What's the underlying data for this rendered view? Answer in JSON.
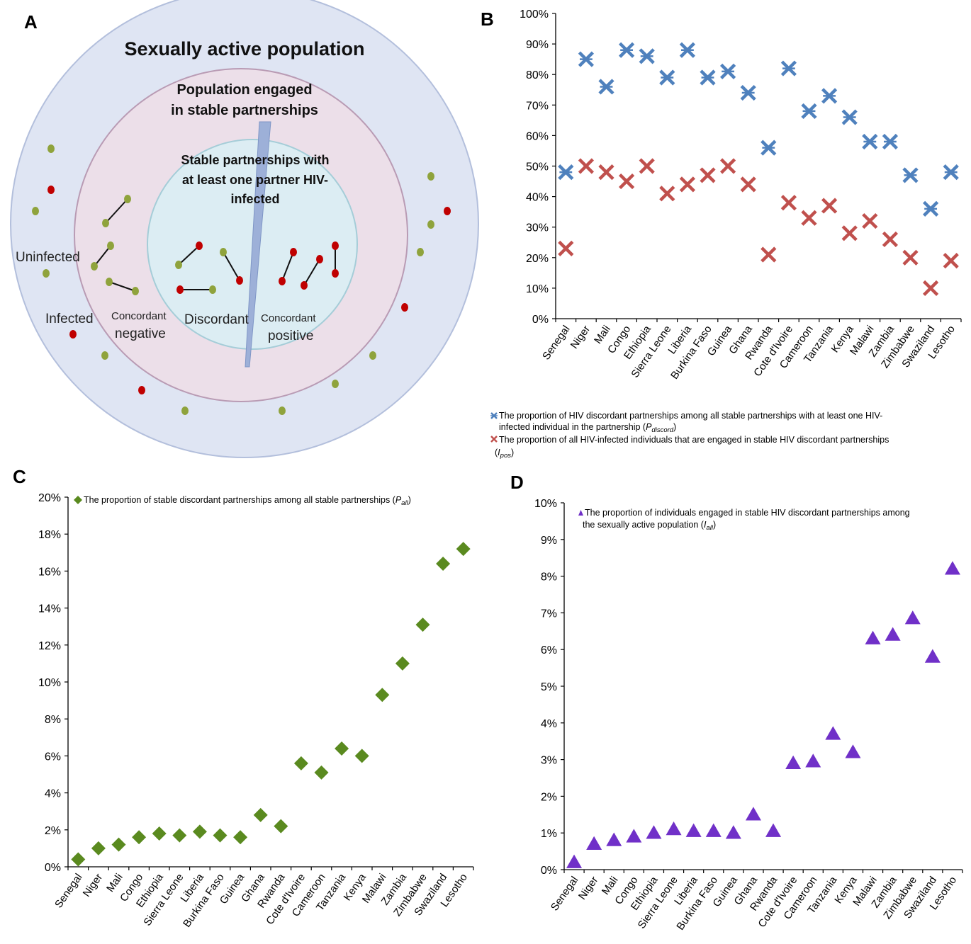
{
  "panels": {
    "A": {
      "letter": "A",
      "outer_label": "Sexually active population",
      "middle_label_1": "Population engaged",
      "middle_label_2": "in stable partnerships",
      "inner_label_1": "Stable partnerships with",
      "inner_label_2": "at least one partner HIV-",
      "inner_label_3": "infected",
      "uninfected": "Uninfected",
      "infected": "Infected",
      "concordant_neg_1": "Concordant",
      "concordant_neg_2": "negative",
      "discordant": "Discordant",
      "concordant_pos_1": "Concordant",
      "concordant_pos_2": "positive",
      "colors": {
        "outer": "#dfe5f3",
        "middle": "#ecdfe9",
        "inner": "#dcedf3",
        "uninfected_dot": "#8fa33c",
        "infected_dot": "#c00000"
      }
    },
    "B": {
      "letter": "B",
      "legend_blue": "The proportion of HIV discordant partnerships among all stable partnerships with at least one HIV-",
      "legend_blue_2": "infected individual in the partnership (",
      "legend_blue_sym": "P",
      "legend_blue_sub": "discord",
      "legend_red": "The proportion of all HIV-infected individuals that are engaged in stable HIV discordant partnerships",
      "legend_red_sym": "I",
      "legend_red_sub": "pos"
    },
    "C": {
      "letter": "C",
      "legend": "The proportion of stable discordant partnerships among all stable partnerships (",
      "legend_sym": "P",
      "legend_sub": "all"
    },
    "D": {
      "letter": "D",
      "legend": "The proportion of individuals engaged in stable HIV discordant partnerships among",
      "legend_2": "the sexually active population (",
      "legend_sym": "I",
      "legend_sub": "all"
    }
  },
  "chart_data": [
    {
      "panel": "B",
      "type": "scatter",
      "categories": [
        "Senegal",
        "Niger",
        "Mali",
        "Congo",
        "Ethiopia",
        "Sierra Leone",
        "Liberia",
        "Burkina Faso",
        "Guinea",
        "Ghana",
        "Rwanda",
        "Cote d'Ivoire",
        "Cameroon",
        "Tanzania",
        "Kenya",
        "Malawi",
        "Zambia",
        "Zimbabwe",
        "Swaziland",
        "Lesotho"
      ],
      "series": [
        {
          "name": "P_discord",
          "color": "#4f81bd",
          "marker": "star-x",
          "values": [
            48,
            85,
            76,
            88,
            86,
            79,
            88,
            79,
            81,
            74,
            56,
            82,
            68,
            73,
            66,
            58,
            58,
            47,
            36,
            48
          ]
        },
        {
          "name": "I_pos",
          "color": "#c0504d",
          "marker": "x",
          "values": [
            23,
            50,
            48,
            45,
            50,
            41,
            44,
            47,
            50,
            44,
            21,
            38,
            33,
            37,
            28,
            32,
            26,
            20,
            10,
            19
          ]
        }
      ],
      "ylim": [
        0,
        100
      ],
      "yticks": [
        "0%",
        "10%",
        "20%",
        "30%",
        "40%",
        "50%",
        "60%",
        "70%",
        "80%",
        "90%",
        "100%"
      ],
      "ystep": 10,
      "legend_position": "bottom"
    },
    {
      "panel": "C",
      "type": "scatter",
      "categories": [
        "Senegal",
        "Niger",
        "Mali",
        "Congo",
        "Ethiopia",
        "Sierra Leone",
        "Liberia",
        "Burkina Faso",
        "Guinea",
        "Ghana",
        "Rwanda",
        "Cote d'Ivoire",
        "Cameroon",
        "Tanzania",
        "Kenya",
        "Malawi",
        "Zambia",
        "Zimbabwe",
        "Swaziland",
        "Lesotho"
      ],
      "series": [
        {
          "name": "P_all",
          "color": "#5a8a1f",
          "marker": "diamond",
          "values": [
            0.4,
            1.0,
            1.2,
            1.6,
            1.8,
            1.7,
            1.9,
            1.7,
            1.6,
            2.8,
            2.2,
            5.6,
            5.1,
            6.4,
            6.0,
            9.3,
            11.0,
            13.1,
            16.4,
            17.2
          ]
        }
      ],
      "ylim": [
        0,
        20
      ],
      "yticks": [
        "0%",
        "2%",
        "4%",
        "6%",
        "8%",
        "10%",
        "12%",
        "14%",
        "16%",
        "18%",
        "20%"
      ],
      "ystep": 2,
      "legend_position": "top-left"
    },
    {
      "panel": "D",
      "type": "scatter",
      "categories": [
        "Senegal",
        "Niger",
        "Mali",
        "Congo",
        "Ethiopia",
        "Sierra Leone",
        "Liberia",
        "Burkina Faso",
        "Guinea",
        "Ghana",
        "Rwanda",
        "Cote d'Ivoire",
        "Cameroon",
        "Tanzania",
        "Kenya",
        "Malawi",
        "Zambia",
        "Zimbabwe",
        "Swaziland",
        "Lesotho"
      ],
      "series": [
        {
          "name": "I_all",
          "color": "#7030c8",
          "marker": "triangle",
          "values": [
            0.2,
            0.7,
            0.8,
            0.9,
            1.0,
            1.1,
            1.05,
            1.05,
            1.0,
            1.5,
            1.05,
            2.9,
            2.95,
            3.7,
            3.2,
            6.3,
            6.4,
            6.85,
            5.8,
            8.2
          ]
        }
      ],
      "ylim": [
        0,
        10
      ],
      "yticks": [
        "0%",
        "1%",
        "2%",
        "3%",
        "4%",
        "5%",
        "6%",
        "7%",
        "8%",
        "9%",
        "10%"
      ],
      "ystep": 1,
      "legend_position": "top-left"
    }
  ]
}
